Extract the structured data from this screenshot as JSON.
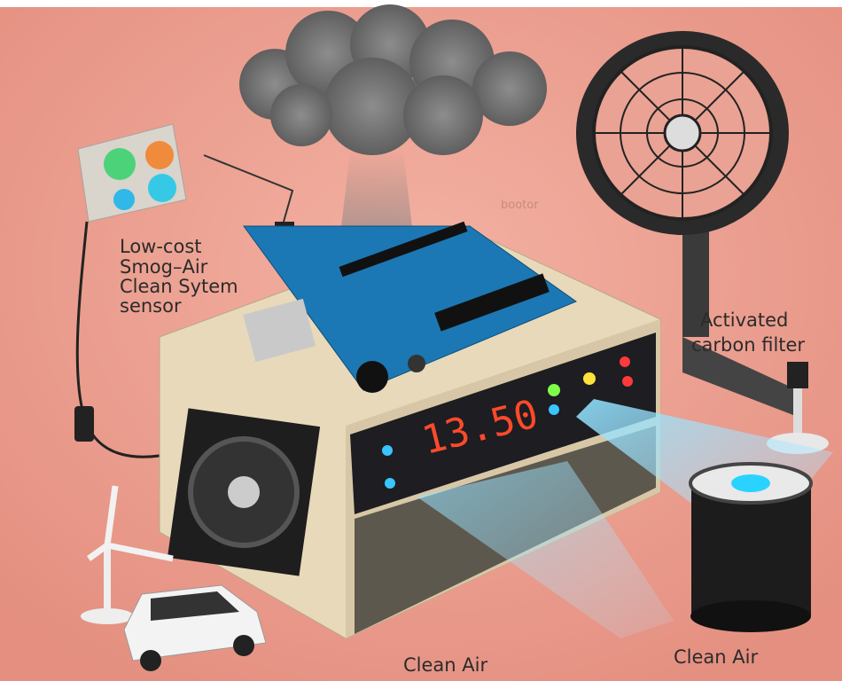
{
  "labels": {
    "sensor": [
      "Low-cost",
      "Smog–Air",
      "Clean Sytem",
      "sensor"
    ],
    "filter": [
      "Activated",
      "carbon filter"
    ],
    "faint": "bootor",
    "display": "13.50",
    "clean_air_left": "Clean Air",
    "clean_air_right": "Clean Air"
  }
}
